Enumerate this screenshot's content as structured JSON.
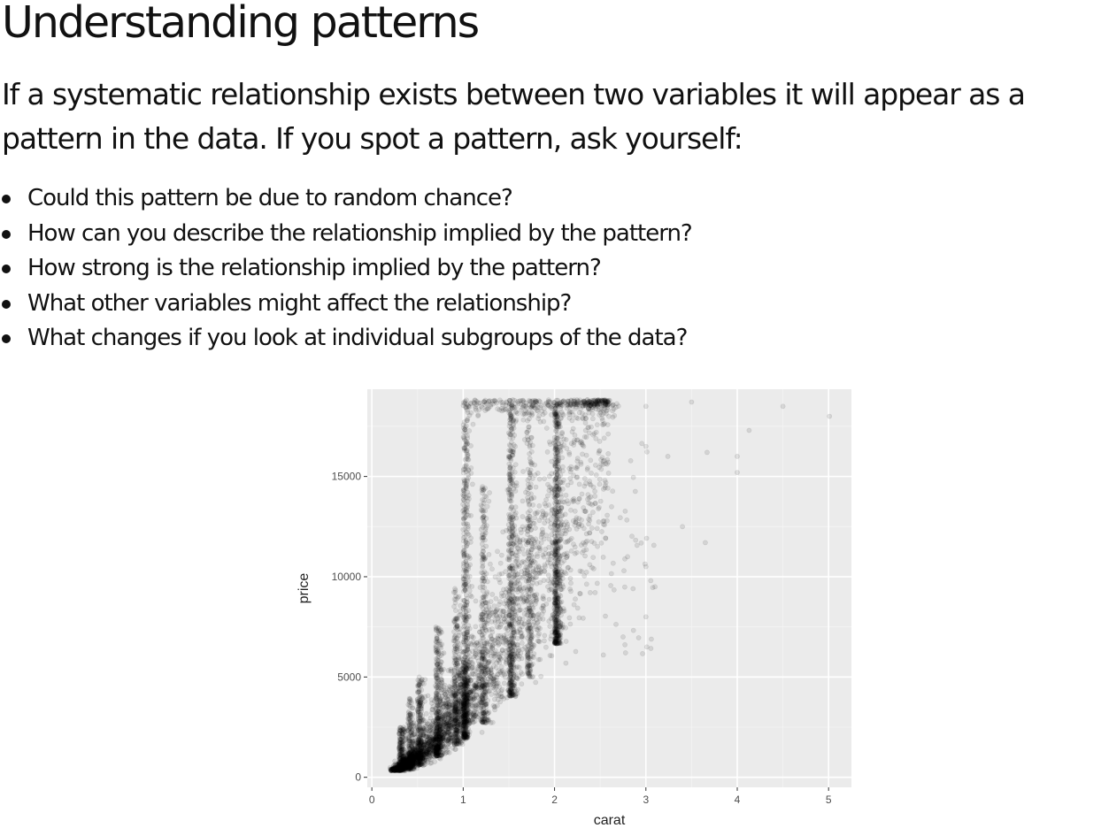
{
  "heading": "Understanding patterns",
  "intro": "If a systematic relationship exists between two variables it will appear as a pattern in the data. If you spot a pattern, ask yourself:",
  "questions": [
    "Could this pattern be due to random chance?",
    "How can you describe the relationship implied by the pattern?",
    "How strong is the relationship implied by the pattern?",
    "What other variables might affect the relationship?",
    "What changes if you look at individual subgroups of the data?"
  ],
  "chart_data": {
    "type": "scatter",
    "xlabel": "carat",
    "ylabel": "price",
    "xlim": [
      -0.05,
      5.25
    ],
    "ylim": [
      -500,
      19350
    ],
    "x_ticks": [
      0,
      1,
      2,
      3,
      4,
      5
    ],
    "y_ticks": [
      0,
      5000,
      10000,
      15000
    ],
    "x_tick_labels": [
      "0",
      "1",
      "2",
      "3",
      "4",
      "5"
    ],
    "y_tick_labels": [
      "0",
      "5000",
      "10000",
      "15000"
    ],
    "grid": true,
    "point_color": "#000000",
    "point_alpha": 0.1,
    "panel_background": "#ebebeb",
    "approx_trend": [
      {
        "carat": 0.25,
        "price_low": 350,
        "price_high": 900
      },
      {
        "carat": 0.5,
        "price_low": 700,
        "price_high": 2800
      },
      {
        "carat": 0.75,
        "price_low": 1500,
        "price_high": 6500
      },
      {
        "carat": 1.0,
        "price_low": 2000,
        "price_high": 11000
      },
      {
        "carat": 1.25,
        "price_low": 3000,
        "price_high": 14500
      },
      {
        "carat": 1.5,
        "price_low": 4000,
        "price_high": 18800
      },
      {
        "carat": 2.0,
        "price_low": 5000,
        "price_high": 18800
      },
      {
        "carat": 2.5,
        "price_low": 6000,
        "price_high": 18800
      }
    ],
    "outliers": [
      {
        "x": 3.0,
        "y": 18500
      },
      {
        "x": 3.0,
        "y": 16500
      },
      {
        "x": 3.0,
        "y": 10500
      },
      {
        "x": 3.0,
        "y": 8000
      },
      {
        "x": 3.01,
        "y": 6500
      },
      {
        "x": 3.1,
        "y": 9500
      },
      {
        "x": 3.24,
        "y": 16000
      },
      {
        "x": 3.4,
        "y": 12500
      },
      {
        "x": 3.5,
        "y": 19000
      },
      {
        "x": 3.65,
        "y": 11700
      },
      {
        "x": 3.67,
        "y": 16200
      },
      {
        "x": 4.0,
        "y": 15200
      },
      {
        "x": 4.0,
        "y": 16000
      },
      {
        "x": 4.13,
        "y": 17300
      },
      {
        "x": 4.5,
        "y": 18500
      },
      {
        "x": 5.01,
        "y": 18000
      },
      {
        "x": 2.75,
        "y": 7000
      },
      {
        "x": 2.8,
        "y": 11000
      }
    ]
  }
}
